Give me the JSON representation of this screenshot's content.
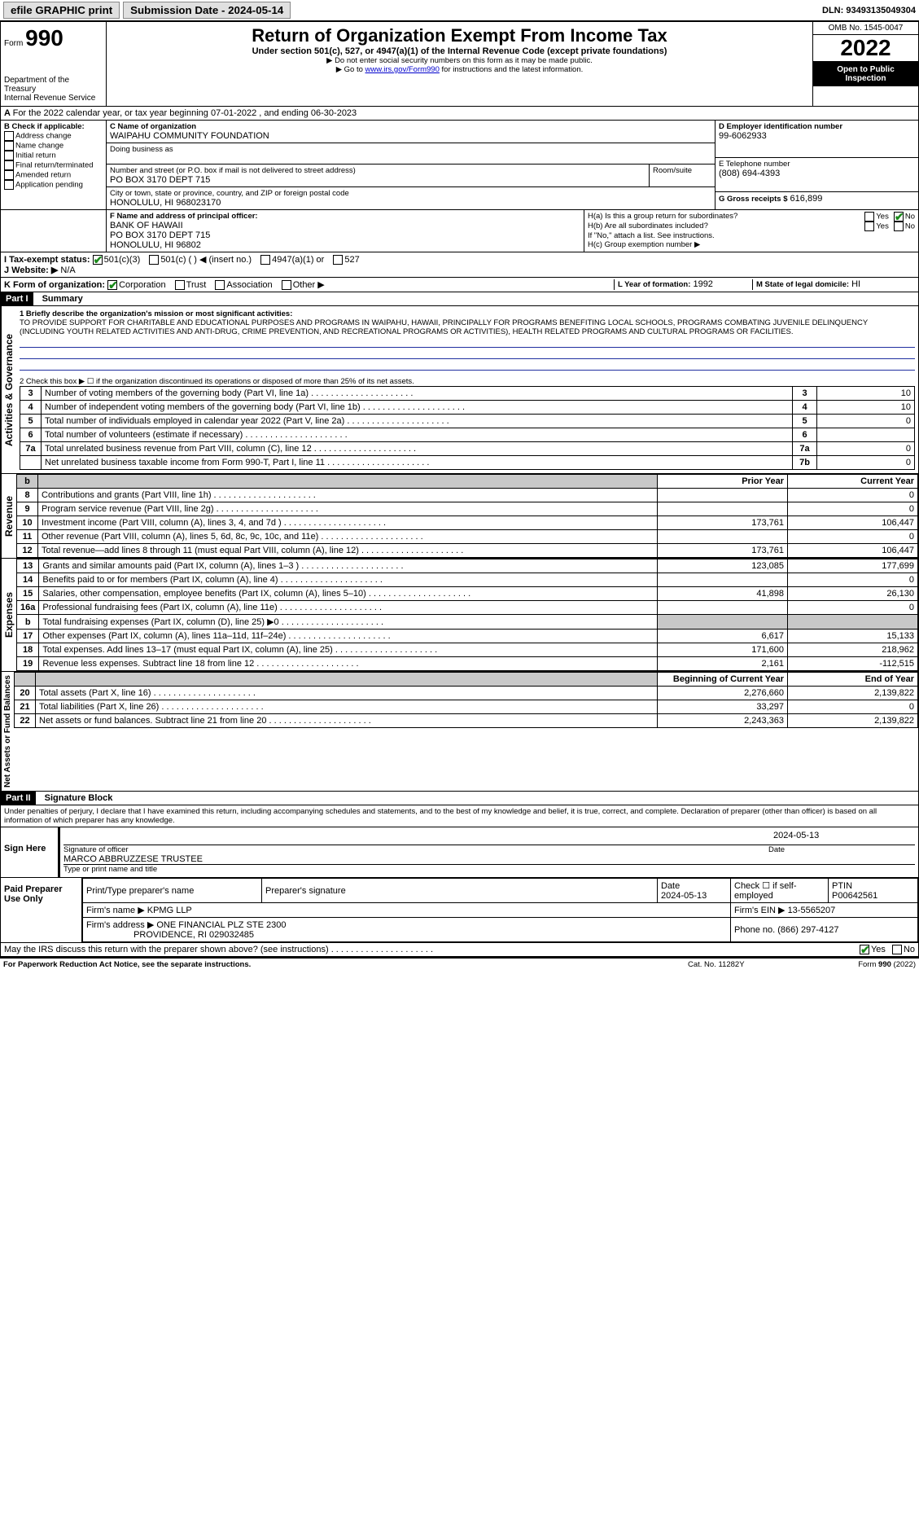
{
  "topbar": {
    "efile_label": "efile GRAPHIC print",
    "submission_date_label": "Submission Date - 2024-05-14",
    "dln_label": "DLN: 93493135049304"
  },
  "header": {
    "form_word": "Form",
    "form_number": "990",
    "dept": "Department of the Treasury",
    "irs": "Internal Revenue Service",
    "title": "Return of Organization Exempt From Income Tax",
    "subtitle": "Under section 501(c), 527, or 4947(a)(1) of the Internal Revenue Code (except private foundations)",
    "note1": "Do not enter social security numbers on this form as it may be made public.",
    "note2_pre": "Go to ",
    "note2_link": "www.irs.gov/Form990",
    "note2_post": " for instructions and the latest information.",
    "omb": "OMB No. 1545-0047",
    "year": "2022",
    "open_pub": "Open to Public Inspection"
  },
  "period": {
    "line": "For the 2022 calendar year, or tax year beginning 07-01-2022   , and ending 06-30-2023"
  },
  "boxB": {
    "title": "B Check if applicable:",
    "items": [
      "Address change",
      "Name change",
      "Initial return",
      "Final return/terminated",
      "Amended return",
      "Application pending"
    ]
  },
  "boxC": {
    "label_name": "C Name of organization",
    "name": "WAIPAHU COMMUNITY FOUNDATION",
    "dba_label": "Doing business as",
    "addr_label": "Number and street (or P.O. box if mail is not delivered to street address)",
    "addr": "PO BOX 3170 DEPT 715",
    "room_label": "Room/suite",
    "city_label": "City or town, state or province, country, and ZIP or foreign postal code",
    "city": "HONOLULU, HI  968023170"
  },
  "boxD": {
    "label": "D Employer identification number",
    "value": "99-6062933"
  },
  "boxE": {
    "label": "E Telephone number",
    "value": "(808) 694-4393"
  },
  "boxG": {
    "label": "G Gross receipts $",
    "value": "616,899"
  },
  "boxF": {
    "label": "F  Name and address of principal officer:",
    "l1": "BANK OF HAWAII",
    "l2": "PO BOX 3170 DEPT 715",
    "l3": "HONOLULU, HI  96802"
  },
  "boxH": {
    "ha": "H(a)  Is this a group return for subordinates?",
    "hb": "H(b)  Are all subordinates included?",
    "hb_note": "If \"No,\" attach a list. See instructions.",
    "hc": "H(c)  Group exemption number ▶",
    "yes": "Yes",
    "no": "No"
  },
  "boxI": {
    "label": "I   Tax-exempt status:",
    "opts": [
      "501(c)(3)",
      "501(c) (  ) ◀ (insert no.)",
      "4947(a)(1) or",
      "527"
    ]
  },
  "boxJ": {
    "label": "J   Website: ▶",
    "value": "N/A"
  },
  "boxK": {
    "label": "K Form of organization:",
    "opts": [
      "Corporation",
      "Trust",
      "Association",
      "Other ▶"
    ]
  },
  "boxL": {
    "label": "L Year of formation:",
    "value": "1992"
  },
  "boxM": {
    "label": "M State of legal domicile:",
    "value": "HI"
  },
  "part1": {
    "hdr": "Part I",
    "title": "Summary"
  },
  "mission": {
    "label": "1  Briefly describe the organization's mission or most significant activities:",
    "text": "TO PROVIDE SUPPORT FOR CHARITABLE AND EDUCATIONAL PURPOSES AND PROGRAMS IN WAIPAHU, HAWAII, PRINCIPALLY FOR PROGRAMS BENEFITING LOCAL SCHOOLS, PROGRAMS COMBATING JUVENILE DELINQUENCY (INCLUDING YOUTH RELATED ACTIVITIES AND ANTI-DRUG, CRIME PREVENTION, AND RECREATIONAL PROGRAMS OR ACTIVITIES), HEALTH RELATED PROGRAMS AND CULTURAL PROGRAMS OR FACILITIES."
  },
  "gov": {
    "line2": "2   Check this box ▶ ☐  if the organization discontinued its operations or disposed of more than 25% of its net assets.",
    "rows": [
      {
        "n": "3",
        "t": "Number of voting members of the governing body (Part VI, line 1a)",
        "c": "3",
        "v": "10"
      },
      {
        "n": "4",
        "t": "Number of independent voting members of the governing body (Part VI, line 1b)",
        "c": "4",
        "v": "10"
      },
      {
        "n": "5",
        "t": "Total number of individuals employed in calendar year 2022 (Part V, line 2a)",
        "c": "5",
        "v": "0"
      },
      {
        "n": "6",
        "t": "Total number of volunteers (estimate if necessary)",
        "c": "6",
        "v": ""
      },
      {
        "n": "7a",
        "t": "Total unrelated business revenue from Part VIII, column (C), line 12",
        "c": "7a",
        "v": "0"
      },
      {
        "n": "",
        "t": "Net unrelated business taxable income from Form 990-T, Part I, line 11",
        "c": "7b",
        "v": "0"
      }
    ]
  },
  "fin": {
    "hdr_prior": "Prior Year",
    "hdr_curr": "Current Year",
    "revenue_label": "Revenue",
    "expenses_label": "Expenses",
    "net_label": "Net Assets or Fund Balances",
    "rev": [
      {
        "n": "8",
        "t": "Contributions and grants (Part VIII, line 1h)",
        "p": "",
        "c": "0"
      },
      {
        "n": "9",
        "t": "Program service revenue (Part VIII, line 2g)",
        "p": "",
        "c": "0"
      },
      {
        "n": "10",
        "t": "Investment income (Part VIII, column (A), lines 3, 4, and 7d )",
        "p": "173,761",
        "c": "106,447"
      },
      {
        "n": "11",
        "t": "Other revenue (Part VIII, column (A), lines 5, 6d, 8c, 9c, 10c, and 11e)",
        "p": "",
        "c": "0"
      },
      {
        "n": "12",
        "t": "Total revenue—add lines 8 through 11 (must equal Part VIII, column (A), line 12)",
        "p": "173,761",
        "c": "106,447"
      }
    ],
    "exp": [
      {
        "n": "13",
        "t": "Grants and similar amounts paid (Part IX, column (A), lines 1–3 )",
        "p": "123,085",
        "c": "177,699"
      },
      {
        "n": "14",
        "t": "Benefits paid to or for members (Part IX, column (A), line 4)",
        "p": "",
        "c": "0"
      },
      {
        "n": "15",
        "t": "Salaries, other compensation, employee benefits (Part IX, column (A), lines 5–10)",
        "p": "41,898",
        "c": "26,130"
      },
      {
        "n": "16a",
        "t": "Professional fundraising fees (Part IX, column (A), line 11e)",
        "p": "",
        "c": "0"
      },
      {
        "n": "b",
        "t": "Total fundraising expenses (Part IX, column (D), line 25) ▶0",
        "p": "SHADE",
        "c": "SHADE"
      },
      {
        "n": "17",
        "t": "Other expenses (Part IX, column (A), lines 11a–11d, 11f–24e)",
        "p": "6,617",
        "c": "15,133"
      },
      {
        "n": "18",
        "t": "Total expenses. Add lines 13–17 (must equal Part IX, column (A), line 25)",
        "p": "171,600",
        "c": "218,962"
      },
      {
        "n": "19",
        "t": "Revenue less expenses. Subtract line 18 from line 12",
        "p": "2,161",
        "c": "-112,515"
      }
    ],
    "hdr_beg": "Beginning of Current Year",
    "hdr_end": "End of Year",
    "net": [
      {
        "n": "20",
        "t": "Total assets (Part X, line 16)",
        "p": "2,276,660",
        "c": "2,139,822"
      },
      {
        "n": "21",
        "t": "Total liabilities (Part X, line 26)",
        "p": "33,297",
        "c": "0"
      },
      {
        "n": "22",
        "t": "Net assets or fund balances. Subtract line 21 from line 20",
        "p": "2,243,363",
        "c": "2,139,822"
      }
    ]
  },
  "part2": {
    "hdr": "Part II",
    "title": "Signature Block"
  },
  "sig": {
    "perjury": "Under penalties of perjury, I declare that I have examined this return, including accompanying schedules and statements, and to the best of my knowledge and belief, it is true, correct, and complete. Declaration of preparer (other than officer) is based on all information of which preparer has any knowledge.",
    "sign_here": "Sign Here",
    "sig_officer": "Signature of officer",
    "date": "Date",
    "date_val": "2024-05-13",
    "name_title": "MARCO ABBRUZZESE  TRUSTEE",
    "name_label": "Type or print name and title"
  },
  "paid": {
    "label": "Paid Preparer Use Only",
    "col_name": "Print/Type preparer's name",
    "col_sig": "Preparer's signature",
    "col_date": "Date",
    "date_val": "2024-05-13",
    "check_label": "Check ☐ if self-employed",
    "ptin_label": "PTIN",
    "ptin": "P00642561",
    "firm_name_label": "Firm's name   ▶",
    "firm_name": "KPMG LLP",
    "firm_ein_label": "Firm's EIN ▶",
    "firm_ein": "13-5565207",
    "firm_addr_label": "Firm's address ▶",
    "firm_addr1": "ONE FINANCIAL PLZ STE 2300",
    "firm_addr2": "PROVIDENCE, RI  029032485",
    "phone_label": "Phone no.",
    "phone": "(866) 297-4127"
  },
  "footer": {
    "discuss": "May the IRS discuss this return with the preparer shown above? (see instructions)",
    "yes": "Yes",
    "no": "No",
    "pra": "For Paperwork Reduction Act Notice, see the separate instructions.",
    "cat": "Cat. No. 11282Y",
    "form": "Form 990 (2022)"
  },
  "colors": {
    "link": "#0000cc",
    "rule_blue": "#2030a0",
    "shade": "#c8c8c8"
  }
}
